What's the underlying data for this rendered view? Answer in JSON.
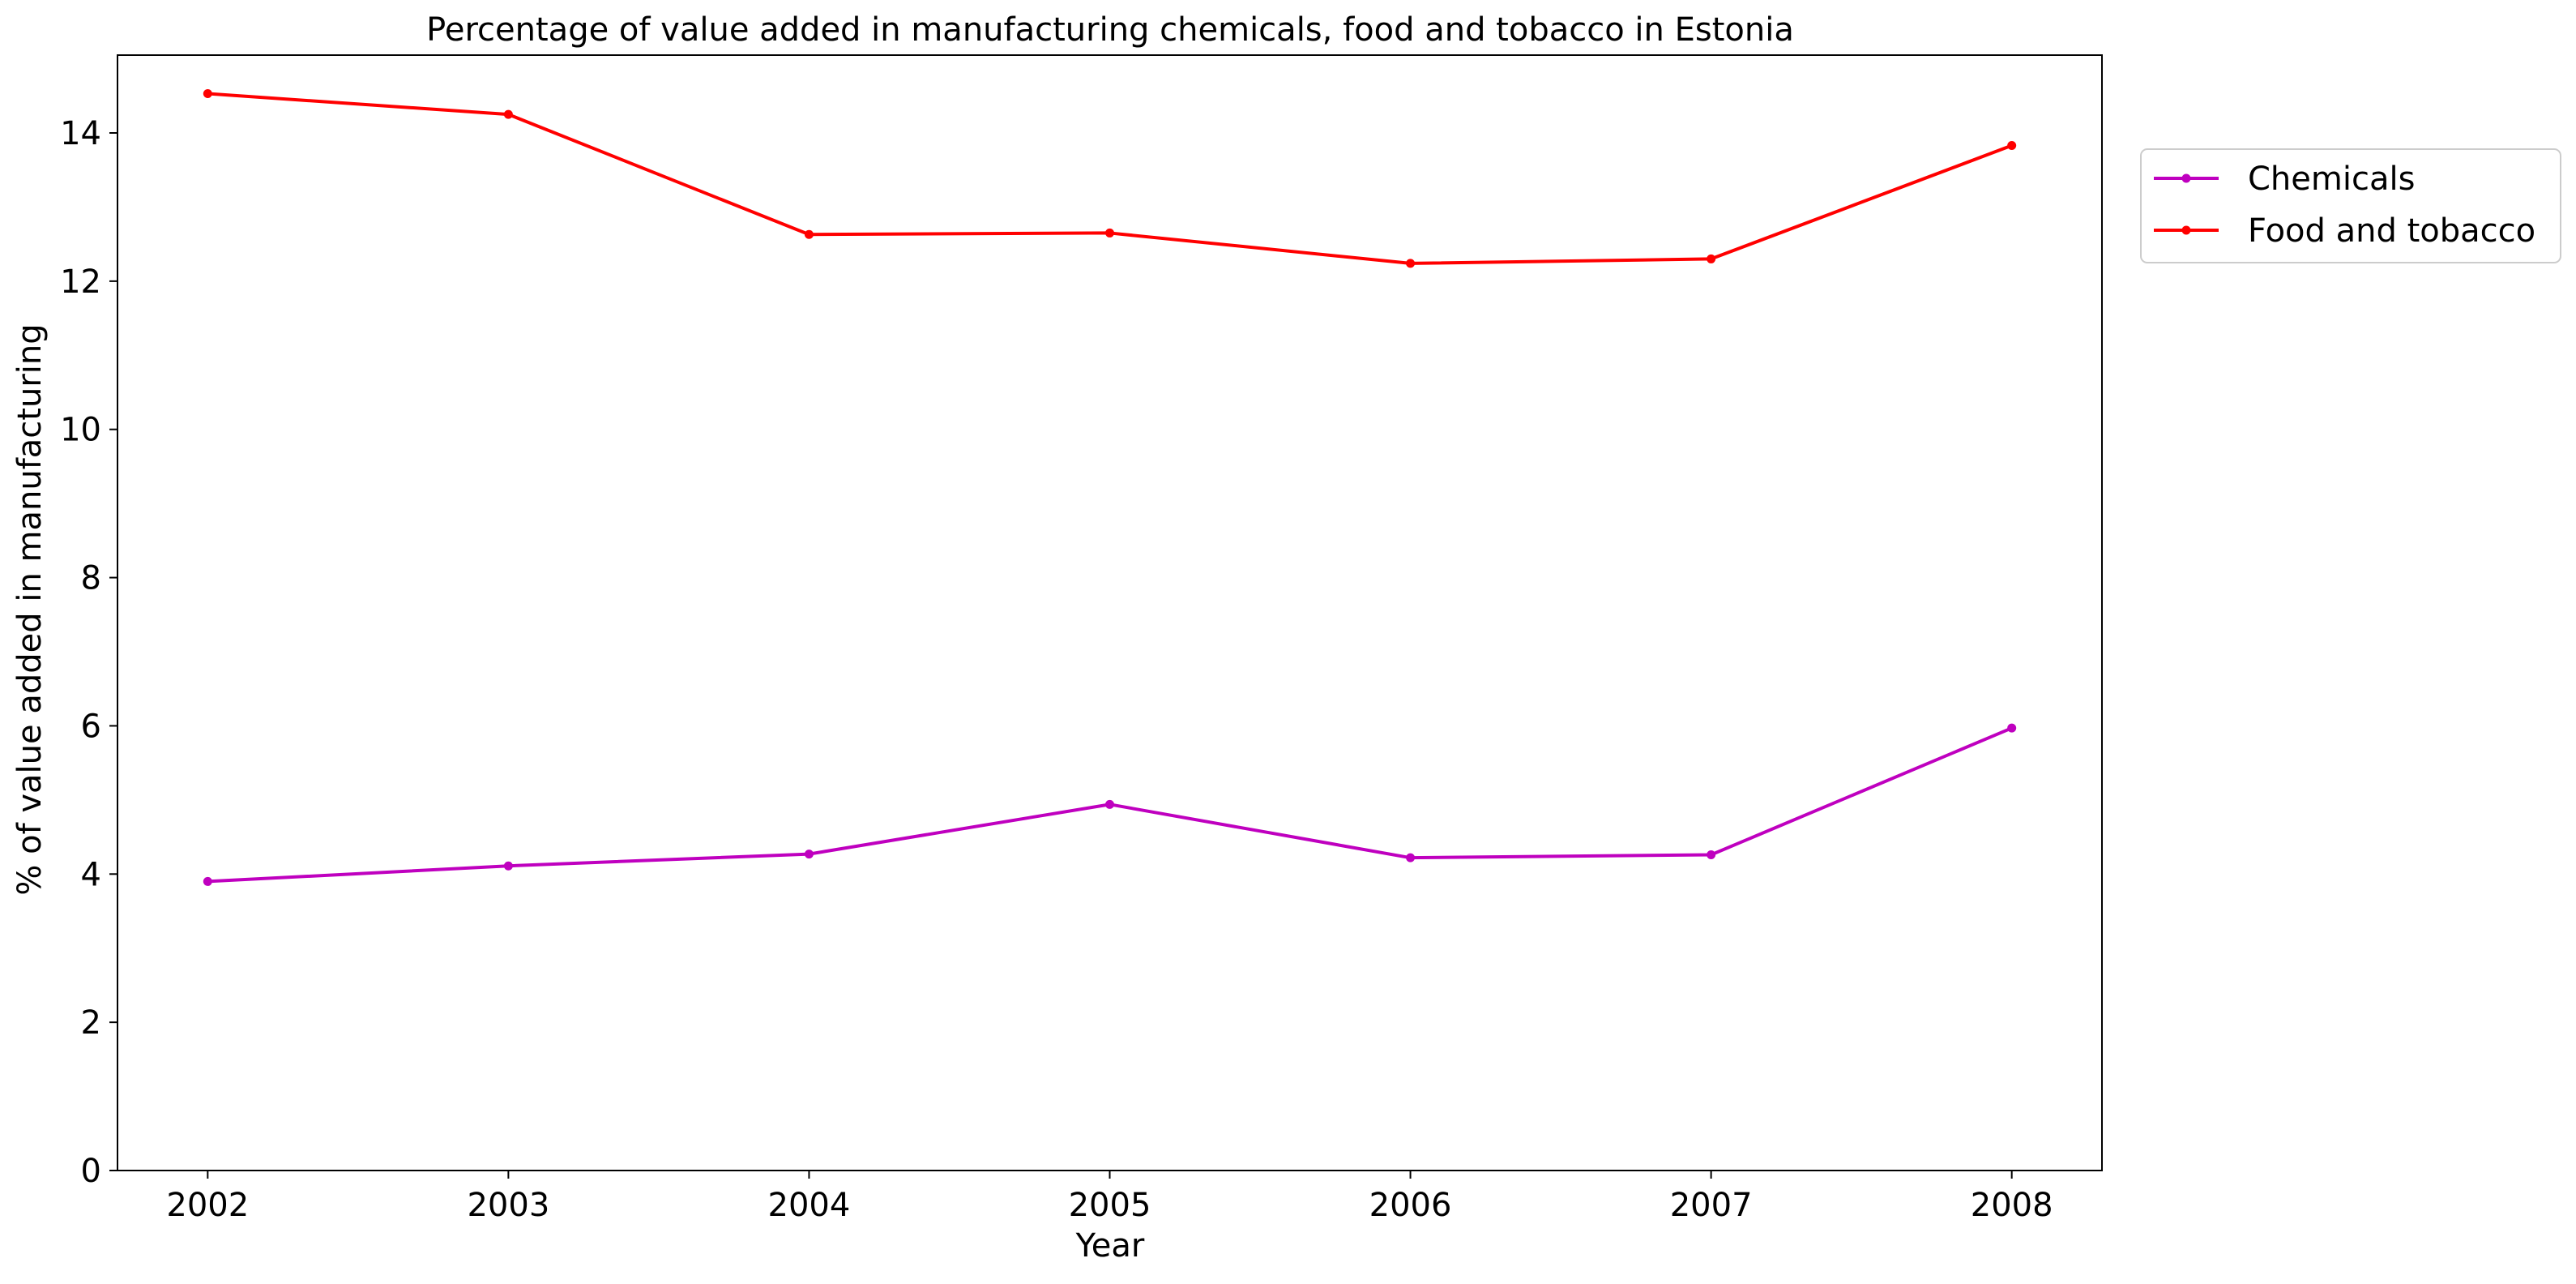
{
  "chart_data": {
    "type": "line",
    "title": "Percentage of value added in manufacturing chemicals, food and tobacco in Estonia",
    "xlabel": "Year",
    "ylabel": "% of value added in manufacturing",
    "x": [
      "2002",
      "2003",
      "2004",
      "2005",
      "2006",
      "2007",
      "2008"
    ],
    "xlim": [
      2001.7,
      2008.3
    ],
    "ylim": [
      0,
      15.05
    ],
    "yticks": [
      0,
      2,
      4,
      6,
      8,
      10,
      12,
      14
    ],
    "grid": false,
    "legend_position": "upper right, outside plot area",
    "series": [
      {
        "name": "Chemicals",
        "color": "#bf00bf",
        "marker": "circle",
        "values": [
          3.9,
          4.11,
          4.27,
          4.94,
          4.22,
          4.26,
          5.97
        ]
      },
      {
        "name": "Food and tobacco",
        "color": "#ff0000",
        "marker": "circle",
        "values": [
          14.53,
          14.25,
          12.63,
          12.65,
          12.24,
          12.3,
          13.83
        ]
      }
    ]
  }
}
